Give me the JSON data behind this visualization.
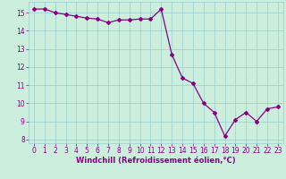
{
  "x": [
    0,
    1,
    2,
    3,
    4,
    5,
    6,
    7,
    8,
    9,
    10,
    11,
    12,
    13,
    14,
    15,
    16,
    17,
    18,
    19,
    20,
    21,
    22,
    23
  ],
  "y": [
    15.2,
    15.2,
    15.0,
    14.9,
    14.8,
    14.7,
    14.65,
    14.45,
    14.6,
    14.6,
    14.65,
    14.65,
    15.2,
    12.7,
    11.4,
    11.1,
    10.0,
    9.5,
    8.2,
    9.1,
    9.5,
    9.0,
    9.7,
    9.8
  ],
  "line_color": "#880088",
  "marker": "D",
  "markersize": 2.0,
  "linewidth": 0.9,
  "bg_color": "#cceedd",
  "grid_color": "#99cccc",
  "xlabel": "Windchill (Refroidissement éolien,°C)",
  "xlabel_color": "#880088",
  "xlabel_fontsize": 6.0,
  "tick_color": "#880088",
  "tick_fontsize": 5.5,
  "ylim": [
    7.8,
    15.6
  ],
  "xlim": [
    -0.5,
    23.5
  ],
  "yticks": [
    8,
    9,
    10,
    11,
    12,
    13,
    14,
    15
  ],
  "xticks": [
    0,
    1,
    2,
    3,
    4,
    5,
    6,
    7,
    8,
    9,
    10,
    11,
    12,
    13,
    14,
    15,
    16,
    17,
    18,
    19,
    20,
    21,
    22,
    23
  ]
}
